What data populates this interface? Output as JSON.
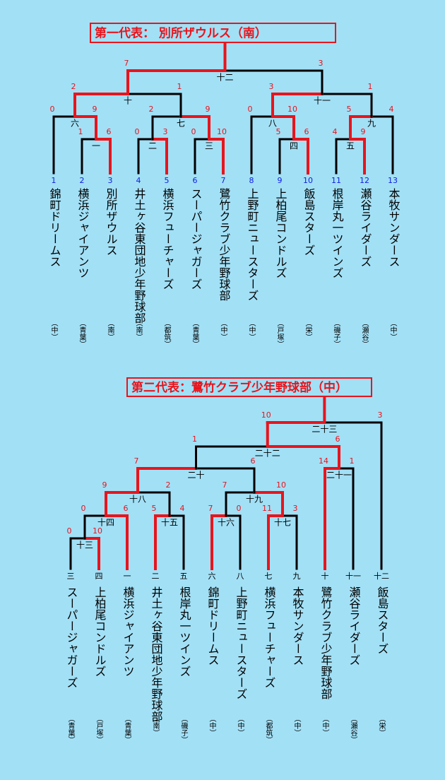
{
  "brackets": [
    {
      "title": "第一代表： 別所ザウルス（南）",
      "teams": [
        {
          "seed": 1,
          "name": "錦町ドリームス",
          "area": "（中）"
        },
        {
          "seed": 2,
          "name": "横浜ジャイアンツ",
          "area": "（青葉）"
        },
        {
          "seed": 3,
          "name": "別所ザウルス",
          "area": "（南）"
        },
        {
          "seed": 4,
          "name": "井土ヶ谷東団地少年野球部",
          "area": "（南）"
        },
        {
          "seed": 5,
          "name": "横浜フューチャーズ",
          "area": "（都筑）"
        },
        {
          "seed": 6,
          "name": "スーパージャガーズ",
          "area": "（青葉）"
        },
        {
          "seed": 7,
          "name": "鷺竹クラブ少年野球部",
          "area": "（中）"
        },
        {
          "seed": 8,
          "name": "上野町ニュースターズ",
          "area": "（中）"
        },
        {
          "seed": 9,
          "name": "上柏尾コンドルズ",
          "area": "（戸塚）"
        },
        {
          "seed": 10,
          "name": "飯島スターズ",
          "area": "（栄）"
        },
        {
          "seed": 11,
          "name": "根岸丸一ツインズ",
          "area": "（磯子）"
        },
        {
          "seed": 12,
          "name": "瀬谷ライダーズ",
          "area": "（瀬谷）"
        },
        {
          "seed": 13,
          "name": "本牧サンダース",
          "area": "（中）"
        }
      ],
      "matches": [
        {
          "label": "一",
          "scores": [
            1,
            6
          ]
        },
        {
          "label": "六",
          "scores": [
            0,
            9
          ]
        },
        {
          "label": "二",
          "scores": [
            0,
            3
          ]
        },
        {
          "label": "三",
          "scores": [
            0,
            10
          ]
        },
        {
          "label": "七",
          "scores": [
            2,
            9
          ]
        },
        {
          "label": "十",
          "scores": [
            2,
            1
          ]
        },
        {
          "label": "四",
          "scores": [
            5,
            6
          ]
        },
        {
          "label": "八",
          "scores": [
            0,
            10
          ]
        },
        {
          "label": "五",
          "scores": [
            4,
            9
          ]
        },
        {
          "label": "九",
          "scores": [
            5,
            4
          ]
        },
        {
          "label": "十一",
          "scores": [
            3,
            1
          ]
        },
        {
          "label": "十二",
          "scores": [
            7,
            3
          ]
        }
      ]
    },
    {
      "title": "第二代表：鷺竹クラブ少年野球部（中）",
      "teams": [
        {
          "seed": "三",
          "name": "スーパージャガーズ",
          "area": "（青葉）"
        },
        {
          "seed": "四",
          "name": "上柏尾コンドルズ",
          "area": "（戸塚）"
        },
        {
          "seed": "一",
          "name": "横浜ジャイアンツ",
          "area": "（青葉）"
        },
        {
          "seed": "二",
          "name": "井土ヶ谷東団地少年野球部",
          "area": "（南）"
        },
        {
          "seed": "五",
          "name": "根岸丸一ツインズ",
          "area": "（磯子）"
        },
        {
          "seed": "六",
          "name": "錦町ドリームス",
          "area": "（中）"
        },
        {
          "seed": "八",
          "name": "上野町ニュースターズ",
          "area": "（中）"
        },
        {
          "seed": "七",
          "name": "横浜フューチャーズ",
          "area": "（都筑）"
        },
        {
          "seed": "九",
          "name": "本牧サンダース",
          "area": "（中）"
        },
        {
          "seed": "十",
          "name": "鷺竹クラブ少年野球部",
          "area": "（中）"
        },
        {
          "seed": "十一",
          "name": "瀬谷ライダーズ",
          "area": "（瀬谷）"
        },
        {
          "seed": "十二",
          "name": "飯島スターズ",
          "area": "（栄）"
        }
      ],
      "matches": [
        {
          "label": "十三",
          "scores": [
            0,
            10
          ]
        },
        {
          "label": "十四",
          "scores": [
            0,
            6
          ]
        },
        {
          "label": "十五",
          "scores": [
            5,
            4
          ]
        },
        {
          "label": "十八",
          "scores": [
            9,
            2
          ]
        },
        {
          "label": "十六",
          "scores": [
            7,
            0
          ]
        },
        {
          "label": "十七",
          "scores": [
            11,
            3
          ]
        },
        {
          "label": "十九",
          "scores": [
            7,
            10
          ]
        },
        {
          "label": "二十",
          "scores": [
            7,
            6
          ]
        },
        {
          "label": "二十一",
          "scores": [
            14,
            1
          ]
        },
        {
          "label": "二十二",
          "scores": [
            1,
            6
          ]
        },
        {
          "label": "二十三",
          "scores": [
            10,
            3
          ]
        }
      ]
    }
  ]
}
